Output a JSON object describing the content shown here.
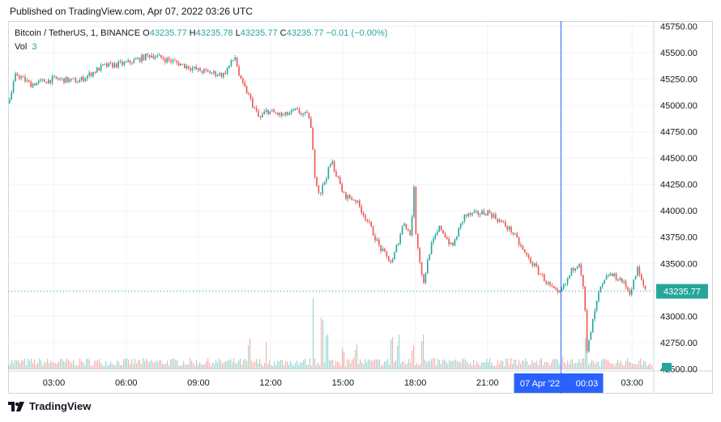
{
  "header": {
    "published": "Published on TradingView.com, Apr 07, 2022 03:26 UTC"
  },
  "legend": {
    "symbol": "Bitcoin / TetherUS, 1, BINANCE",
    "o_label": "O",
    "o_value": "43235.77",
    "h_label": "H",
    "h_value": "43235.78",
    "l_label": "L",
    "l_value": "43235.77",
    "c_label": "C",
    "c_value": "43235.77",
    "change": "−0.01 (−0.00%)",
    "vol_label": "Vol",
    "vol_value": "3"
  },
  "footer": {
    "brand": "TradingView"
  },
  "colors": {
    "up": "#26a69a",
    "down": "#ef5350",
    "crosshair": "#2962ff",
    "grid": "#f0f3fa"
  },
  "chart_data": {
    "type": "candlestick",
    "title": "Bitcoin / TetherUS, 1, BINANCE",
    "y_ticks": [
      "45750.00",
      "45500.00",
      "45250.00",
      "45000.00",
      "44750.00",
      "44500.00",
      "44250.00",
      "44000.00",
      "43750.00",
      "43500.00",
      "43250.00",
      "43000.00",
      "42750.00",
      "42500.00"
    ],
    "ylim": [
      42480,
      45800
    ],
    "x_ticks": [
      "03:00",
      "06:00",
      "09:00",
      "12:00",
      "15:00",
      "18:00",
      "21:00",
      "03:00"
    ],
    "x_tick_hours": [
      3,
      6,
      9,
      12,
      15,
      18,
      21,
      27
    ],
    "xlim_hours": [
      1.1,
      27.9
    ],
    "last_price": "43235.77",
    "crosshair": {
      "time_label": "07 Apr '22",
      "time_value": "00:03",
      "hour": 24.05
    },
    "price_path": [
      [
        1.1,
        45020
      ],
      [
        1.4,
        45300
      ],
      [
        2.0,
        45200
      ],
      [
        3.0,
        45250
      ],
      [
        4.0,
        45230
      ],
      [
        5.0,
        45370
      ],
      [
        6.0,
        45400
      ],
      [
        7.0,
        45480
      ],
      [
        8.0,
        45410
      ],
      [
        9.0,
        45330
      ],
      [
        10.0,
        45290
      ],
      [
        10.5,
        45460
      ],
      [
        10.7,
        45240
      ],
      [
        11.0,
        45120
      ],
      [
        11.5,
        44870
      ],
      [
        11.8,
        44950
      ],
      [
        12.5,
        44900
      ],
      [
        13.0,
        44950
      ],
      [
        13.6,
        44890
      ],
      [
        13.8,
        44350
      ],
      [
        14.0,
        44150
      ],
      [
        14.5,
        44470
      ],
      [
        15.0,
        44150
      ],
      [
        15.5,
        44100
      ],
      [
        16.0,
        43900
      ],
      [
        16.5,
        43650
      ],
      [
        17.0,
        43500
      ],
      [
        17.5,
        43900
      ],
      [
        17.8,
        43750
      ],
      [
        17.9,
        44300
      ],
      [
        18.0,
        43800
      ],
      [
        18.3,
        43300
      ],
      [
        18.6,
        43650
      ],
      [
        19.0,
        43850
      ],
      [
        19.5,
        43650
      ],
      [
        20.0,
        43950
      ],
      [
        21.0,
        43990
      ],
      [
        21.5,
        43900
      ],
      [
        22.0,
        43800
      ],
      [
        22.5,
        43600
      ],
      [
        23.0,
        43450
      ],
      [
        23.5,
        43300
      ],
      [
        23.9,
        43200
      ],
      [
        24.2,
        43300
      ],
      [
        24.5,
        43450
      ],
      [
        24.8,
        43520
      ],
      [
        25.0,
        43150
      ],
      [
        25.1,
        42650
      ],
      [
        25.3,
        42900
      ],
      [
        25.6,
        43230
      ],
      [
        26.0,
        43400
      ],
      [
        26.5,
        43350
      ],
      [
        26.9,
        43220
      ],
      [
        27.2,
        43450
      ],
      [
        27.4,
        43300
      ],
      [
        27.6,
        43235.77
      ]
    ],
    "volume_spikes": [
      [
        11.1,
        0.12
      ],
      [
        11.8,
        0.09
      ],
      [
        13.75,
        0.4
      ],
      [
        14.1,
        0.34
      ],
      [
        14.3,
        0.18
      ],
      [
        15.0,
        0.11
      ],
      [
        15.5,
        0.09
      ],
      [
        17.0,
        0.17
      ],
      [
        17.3,
        0.14
      ],
      [
        17.9,
        0.12
      ],
      [
        18.3,
        0.18
      ],
      [
        25.1,
        0.12
      ],
      [
        24.1,
        0.08
      ]
    ]
  }
}
